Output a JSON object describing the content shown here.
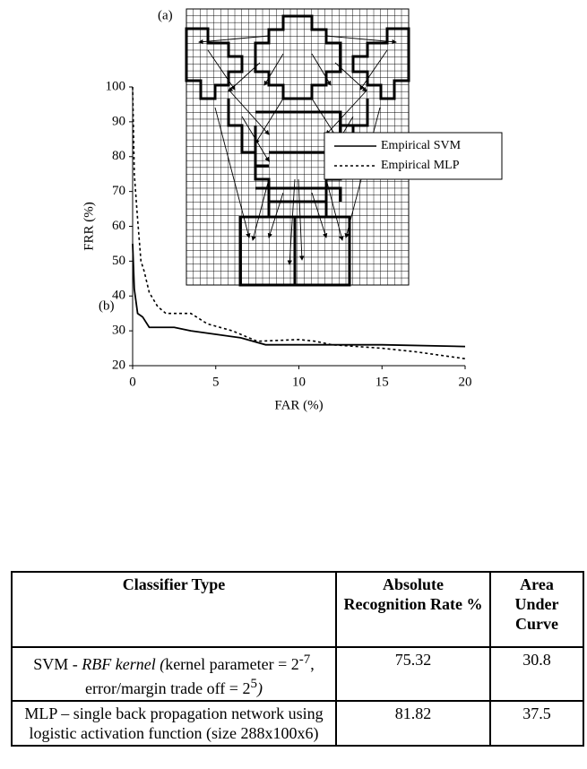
{
  "panel_a": {
    "label": "(a)"
  },
  "chart_data": {
    "type": "line",
    "label": "(b)",
    "x_label": "FAR (%)",
    "y_label": "FRR (%)",
    "xlim": [
      0,
      20
    ],
    "xticks": [
      0,
      5,
      10,
      15,
      20
    ],
    "ylim": [
      20,
      100
    ],
    "yticks": [
      20,
      30,
      40,
      50,
      60,
      70,
      80,
      90,
      100
    ],
    "legend": "right",
    "series": [
      {
        "name": "Empirical SVM",
        "color": "#000000",
        "line_style": "solid",
        "x": [
          0,
          0.1,
          0.3,
          0.6,
          1,
          2.5,
          3.5,
          5,
          6.5,
          8,
          10,
          15,
          20
        ],
        "values": [
          55,
          42,
          35,
          34,
          31,
          31,
          30,
          29,
          28,
          26,
          26,
          26,
          25.5
        ]
      },
      {
        "name": "Empirical MLP",
        "color": "#000000",
        "line_style": "dotted",
        "x": [
          0,
          0.1,
          0.3,
          0.5,
          0.7,
          1,
          1.5,
          2,
          3.5,
          4.5,
          6,
          7.5,
          10,
          11,
          12,
          15,
          17,
          20
        ],
        "values": [
          100,
          75,
          62,
          50,
          47,
          41,
          37,
          35,
          35,
          32,
          30,
          27,
          27.5,
          27,
          26,
          25,
          24,
          22
        ]
      }
    ]
  },
  "table": {
    "header": [
      "Classifier Type",
      "Absolute Recognition Rate %",
      "Area Under Curve"
    ],
    "rows": [
      [
        [
          "SVM - ",
          "RBF kernel (",
          "kernel parameter = 2",
          "-7",
          ", error/margin trade off = 2",
          "5",
          ")"
        ],
        75.32,
        30.8
      ],
      [
        [
          "MLP – single back propagation network using logistic activation function (size 288x100x6)"
        ],
        81.82,
        37.5
      ]
    ]
  }
}
